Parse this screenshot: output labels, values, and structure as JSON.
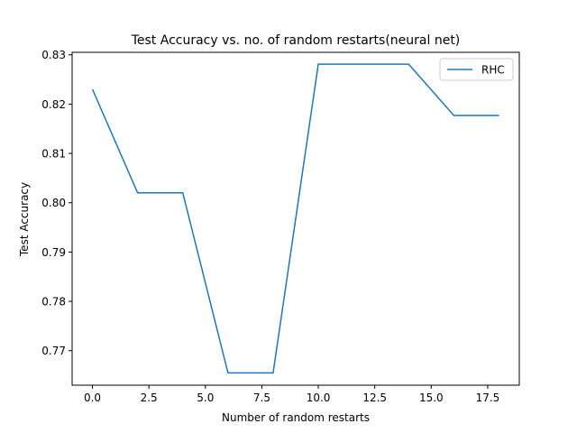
{
  "chart_data": {
    "type": "line",
    "title": "Test Accuracy vs. no. of random restarts(neural net)",
    "xlabel": "Number of random restarts",
    "ylabel": "Test Accuracy",
    "xlim": [
      -0.9,
      18.9
    ],
    "ylim": [
      0.763,
      0.8305
    ],
    "xticks": [
      0.0,
      2.5,
      5.0,
      7.5,
      10.0,
      12.5,
      15.0,
      17.5
    ],
    "xtick_labels": [
      "0.0",
      "2.5",
      "5.0",
      "7.5",
      "10.0",
      "12.5",
      "15.0",
      "17.5"
    ],
    "yticks": [
      0.77,
      0.78,
      0.79,
      0.8,
      0.81,
      0.82,
      0.83
    ],
    "ytick_labels": [
      "0.77",
      "0.78",
      "0.79",
      "0.80",
      "0.81",
      "0.82",
      "0.83"
    ],
    "grid": false,
    "legend_position": "top-right",
    "series": [
      {
        "name": "RHC",
        "color": "#1f77b4",
        "x": [
          0,
          2,
          4,
          6,
          8,
          10,
          12,
          14,
          16,
          18
        ],
        "y": [
          0.823,
          0.802,
          0.802,
          0.7655,
          0.7655,
          0.8281,
          0.8281,
          0.8281,
          0.8177,
          0.8177
        ]
      }
    ]
  }
}
